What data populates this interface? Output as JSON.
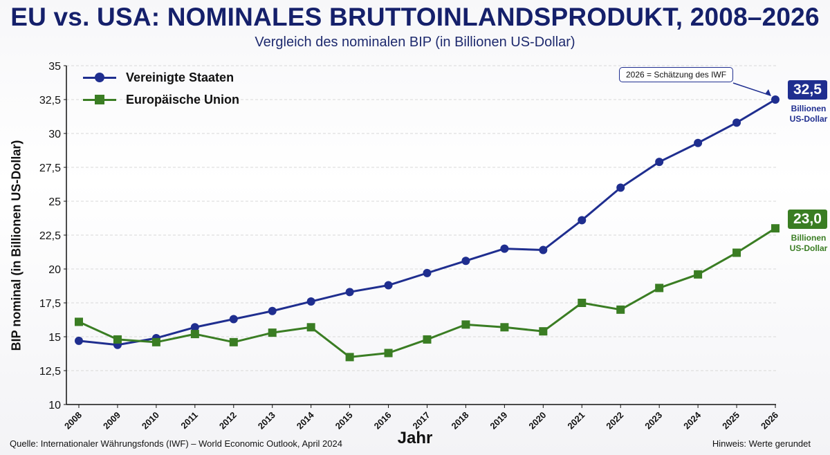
{
  "header": {
    "title": "EU vs. USA: NOMINALES BRUTTOINLANDSPRODUKT, 2008–2026",
    "subtitle": "Vergleich des nominalen BIP (in Billionen US-Dollar)"
  },
  "footer": {
    "source": "Quelle: Internationaler Währungsfonds (IWF) – World Economic Outlook, April 2024",
    "note": "Hinweis: Werte gerundet"
  },
  "annotation": {
    "callout": "2026 = Schätzung des IWF",
    "usa_end_value": "32,5",
    "usa_end_unit": "Billionen\nUS-Dollar",
    "eu_end_value": "23,0",
    "eu_end_unit": "Billionen\nUS-Dollar"
  },
  "colors": {
    "usa": "#1f2e8f",
    "eu": "#3a7d23",
    "grid": "#d8d8d8",
    "title": "#15206b"
  },
  "chart_data": {
    "type": "line",
    "xlabel": "Jahr",
    "ylabel": "BIP nominal (in Billionen US-Dollar)",
    "x": [
      2008,
      2009,
      2010,
      2011,
      2012,
      2013,
      2014,
      2015,
      2016,
      2017,
      2018,
      2019,
      2020,
      2021,
      2022,
      2023,
      2024,
      2025,
      2026
    ],
    "ylim": [
      10,
      35
    ],
    "yticks": [
      10,
      12.5,
      15,
      17.5,
      20,
      22.5,
      25,
      27.5,
      30,
      32.5,
      35
    ],
    "ytick_labels": [
      "10",
      "12,5",
      "15",
      "17,5",
      "20",
      "22,5",
      "25",
      "27,5",
      "30",
      "32,5",
      "35"
    ],
    "grid": "horizontal-dashed",
    "legend_position": "top-left",
    "series": [
      {
        "name": "Vereinigte Staaten",
        "marker": "circle",
        "values": [
          14.7,
          14.4,
          14.9,
          15.7,
          16.3,
          16.9,
          17.6,
          18.3,
          18.8,
          19.7,
          20.6,
          21.5,
          21.4,
          23.6,
          26.0,
          27.9,
          29.3,
          30.8,
          32.5
        ]
      },
      {
        "name": "Europäische Union",
        "marker": "square",
        "values": [
          16.1,
          14.8,
          14.6,
          15.2,
          14.6,
          15.3,
          15.7,
          13.5,
          13.8,
          14.8,
          15.9,
          15.7,
          15.4,
          17.5,
          17.0,
          18.6,
          19.6,
          21.2,
          23.0
        ]
      }
    ]
  }
}
